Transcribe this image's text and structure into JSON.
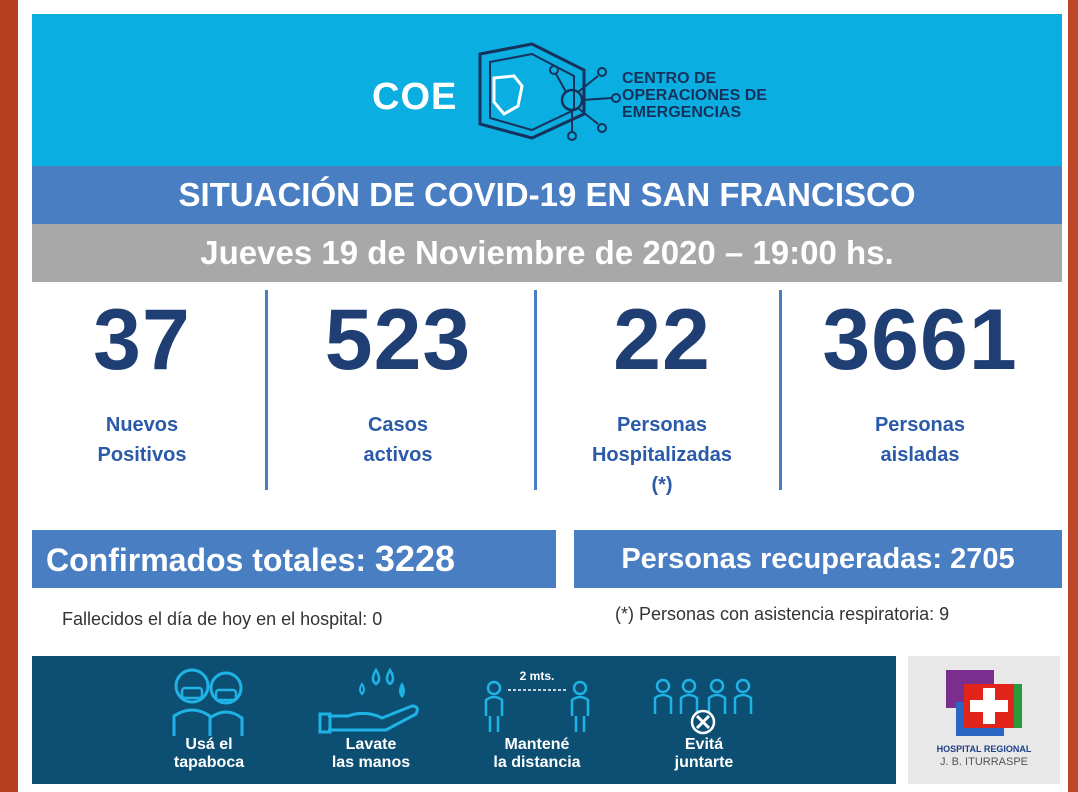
{
  "header": {
    "logo_abbr": "COE",
    "logo_full": [
      "CENTRO DE",
      "OPERACIONES DE",
      "EMERGENCIAS"
    ]
  },
  "title": "SITUACIÓN DE COVID-19 EN SAN FRANCISCO",
  "date": "Jueves 19 de Noviembre de 2020 – 19:00 hs.",
  "stats": [
    {
      "value": "37",
      "label_lines": [
        "Nuevos",
        "Positivos"
      ]
    },
    {
      "value": "523",
      "label_lines": [
        "Casos",
        "activos"
      ]
    },
    {
      "value": "22",
      "label_lines": [
        "Personas",
        "Hospitalizadas",
        "(*)"
      ]
    },
    {
      "value": "3661",
      "label_lines": [
        "Personas",
        "aisladas"
      ]
    }
  ],
  "totals": {
    "confirmados_label": "Confirmados totales:",
    "confirmados_value": "3228",
    "recuperadas_label": "Personas recuperadas:",
    "recuperadas_value": "2705"
  },
  "notes": {
    "fallecidos": "Fallecidos el día de hoy en el hospital: 0",
    "asistencia": "(*) Personas con asistencia respiratoria: 9"
  },
  "prevention": [
    {
      "icon": "mask-people-icon",
      "lines": [
        "Usá el",
        "tapaboca"
      ]
    },
    {
      "icon": "wash-hands-icon",
      "lines": [
        "Lavate",
        "las manos"
      ]
    },
    {
      "icon": "distance-icon",
      "lines": [
        "Mantené",
        "la distancia"
      ],
      "distance_label": "2 mts."
    },
    {
      "icon": "no-gathering-icon",
      "lines": [
        "Evitá",
        "juntarte"
      ]
    }
  ],
  "hospital": {
    "line1": "HOSPITAL REGIONAL",
    "line2": "J. B. ITURRASPE"
  },
  "colors": {
    "header_bg": "#0aaee0",
    "title_bar": "#4a7ec2",
    "date_bar": "#a8a8a8",
    "number_text": "#1f3e74",
    "banner_bg": "#0d4f73"
  }
}
